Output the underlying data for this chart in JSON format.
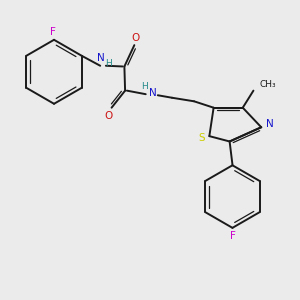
{
  "background_color": "#ebebeb",
  "bond_color": "#1a1a1a",
  "atom_colors": {
    "N": "#1414cc",
    "O": "#cc1414",
    "S": "#cccc00",
    "F": "#cc00cc",
    "H": "#228888",
    "C": "#1a1a1a"
  },
  "lw_single": 1.4,
  "lw_double": 1.2,
  "lw_double_inner": 0.9,
  "font_size_atom": 7.5,
  "font_size_small": 6.5
}
